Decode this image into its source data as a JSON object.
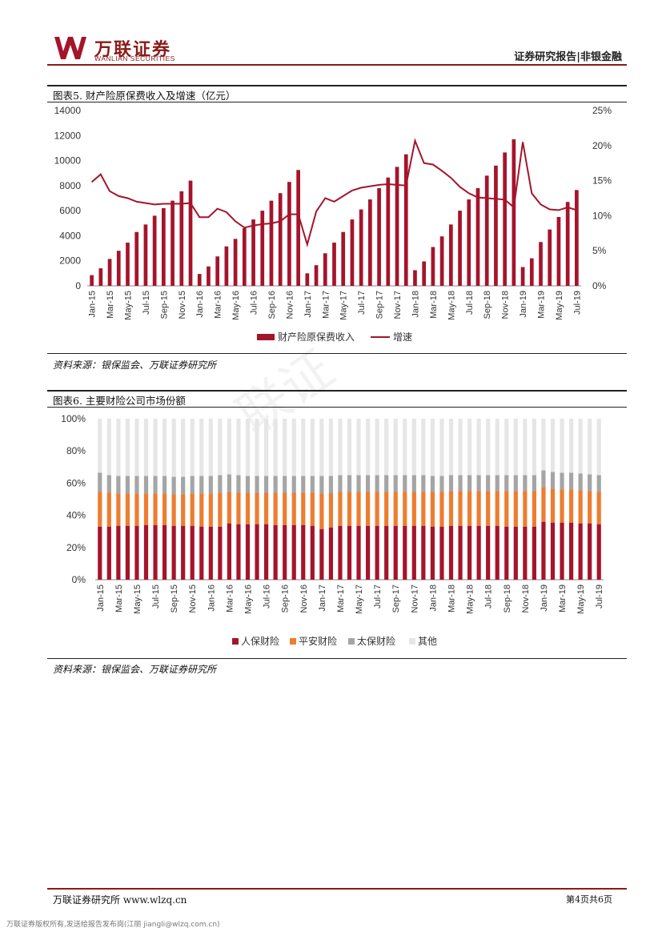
{
  "header": {
    "logo_cn": "万联证券",
    "logo_en": "WANLIAN SECURITIES",
    "report_type": "证券研究报告|非银金融",
    "watermark": "联证"
  },
  "colors": {
    "brand": "#8b1a1a",
    "bar_red": "#a5142b",
    "line": "#a5142b",
    "orange": "#ed7d31",
    "gray": "#a5a5a5",
    "light": "#e6e6e6"
  },
  "fig5": {
    "title": "图表5. 财产险原保费收入及增速（亿元）",
    "source": "资料来源：银保监会、万联证券研究所"
  },
  "fig6": {
    "title": "图表6. 主要财险公司市场份额",
    "source": "资料来源：银保监会、万联证券研究所"
  },
  "footer": {
    "left": "万联证券研究所 www.wlzq.cn",
    "right": "第4页共6页",
    "note": "万联证券版权所有,发送给报告发布岗(江丽 jiangli@wlzq.com.cn)"
  },
  "chart_data": [
    {
      "type": "bar",
      "title": "",
      "categories": [
        "Jan-15",
        "Feb-15",
        "Mar-15",
        "Apr-15",
        "May-15",
        "Jun-15",
        "Jul-15",
        "Aug-15",
        "Sep-15",
        "Oct-15",
        "Nov-15",
        "Dec-15",
        "Jan-16",
        "Feb-16",
        "Mar-16",
        "Apr-16",
        "May-16",
        "Jun-16",
        "Jul-16",
        "Aug-16",
        "Sep-16",
        "Oct-16",
        "Nov-16",
        "Dec-16",
        "Jan-17",
        "Feb-17",
        "Mar-17",
        "Apr-17",
        "May-17",
        "Jun-17",
        "Jul-17",
        "Aug-17",
        "Sep-17",
        "Oct-17",
        "Nov-17",
        "Dec-17",
        "Jan-18",
        "Feb-18",
        "Mar-18",
        "Apr-18",
        "May-18",
        "Jun-18",
        "Jul-18",
        "Aug-18",
        "Sep-18",
        "Oct-18",
        "Nov-18",
        "Dec-18",
        "Jan-19",
        "Feb-19",
        "Mar-19",
        "Apr-19",
        "May-19",
        "Jun-19",
        "Jul-19"
      ],
      "x_tick_labels": [
        "Jan-15",
        "Mar-15",
        "May-15",
        "Jul-15",
        "Sep-15",
        "Nov-15",
        "Jan-16",
        "Mar-16",
        "May-16",
        "Jul-16",
        "Sep-16",
        "Nov-16",
        "Jan-17",
        "Mar-17",
        "May-17",
        "Jul-17",
        "Sep-17",
        "Nov-17",
        "Jan-18",
        "Mar-18",
        "May-18",
        "Jul-18",
        "Sep-18",
        "Nov-18",
        "Jan-19",
        "Mar-19",
        "May-19",
        "Jul-19"
      ],
      "series": [
        {
          "name": "财产险原保费收入",
          "axis": "left",
          "type": "bar",
          "values": [
            850,
            1400,
            2150,
            2800,
            3450,
            4300,
            4900,
            5600,
            6200,
            6800,
            7550,
            8400,
            950,
            1550,
            2350,
            3150,
            3750,
            4600,
            5300,
            6000,
            6800,
            7400,
            8300,
            9250,
            1000,
            1650,
            2600,
            3450,
            4300,
            5300,
            6100,
            6900,
            7800,
            8650,
            9500,
            10500,
            1250,
            1950,
            3100,
            3950,
            4900,
            6000,
            6900,
            7800,
            8800,
            9600,
            10650,
            11700,
            1500,
            2200,
            3500,
            4500,
            5500,
            6700,
            7650
          ]
        },
        {
          "name": "增速",
          "axis": "right",
          "type": "line",
          "values": [
            14.8,
            15.9,
            13.5,
            12.8,
            12.5,
            12.0,
            11.8,
            11.6,
            11.7,
            11.7,
            11.7,
            11.8,
            9.8,
            9.8,
            11.0,
            10.5,
            9.2,
            8.3,
            8.6,
            8.8,
            8.9,
            9.2,
            10.2,
            10.2,
            5.9,
            10.6,
            12.5,
            12.0,
            12.8,
            13.6,
            14.0,
            14.2,
            14.4,
            14.5,
            14.4,
            14.3,
            20.7,
            17.5,
            17.3,
            16.4,
            15.4,
            14.1,
            13.2,
            12.6,
            12.5,
            12.4,
            12.3,
            11.2,
            20.5,
            13.2,
            11.6,
            10.9,
            10.8,
            11.2,
            10.8
          ]
        }
      ],
      "ylim": [
        0,
        14000
      ],
      "yticks": [
        0,
        2000,
        4000,
        6000,
        8000,
        10000,
        12000,
        14000
      ],
      "y2lim": [
        0,
        25
      ],
      "y2ticks": [
        "0%",
        "5%",
        "10%",
        "15%",
        "20%",
        "25%"
      ],
      "legend": [
        "财产险原保费收入",
        "增速"
      ],
      "legend_position": "bottom",
      "grid": false
    },
    {
      "type": "bar",
      "stacked": true,
      "title": "",
      "categories": [
        "Jan-15",
        "Feb-15",
        "Mar-15",
        "Apr-15",
        "May-15",
        "Jun-15",
        "Jul-15",
        "Aug-15",
        "Sep-15",
        "Oct-15",
        "Nov-15",
        "Dec-15",
        "Jan-16",
        "Feb-16",
        "Mar-16",
        "Apr-16",
        "May-16",
        "Jun-16",
        "Jul-16",
        "Aug-16",
        "Sep-16",
        "Oct-16",
        "Nov-16",
        "Dec-16",
        "Jan-17",
        "Feb-17",
        "Mar-17",
        "Apr-17",
        "May-17",
        "Jun-17",
        "Jul-17",
        "Aug-17",
        "Sep-17",
        "Oct-17",
        "Nov-17",
        "Dec-17",
        "Jan-18",
        "Feb-18",
        "Mar-18",
        "Apr-18",
        "May-18",
        "Jun-18",
        "Jul-18",
        "Aug-18",
        "Sep-18",
        "Oct-18",
        "Nov-18",
        "Dec-18",
        "Jan-19",
        "Feb-19",
        "Mar-19",
        "Apr-19",
        "May-19",
        "Jun-19",
        "Jul-19"
      ],
      "x_tick_labels": [
        "Jan-15",
        "Mar-15",
        "May-15",
        "Jul-15",
        "Sep-15",
        "Nov-15",
        "Jan-16",
        "Mar-16",
        "May-16",
        "Jul-16",
        "Sep-16",
        "Nov-16",
        "Jan-17",
        "Mar-17",
        "May-17",
        "Jul-17",
        "Sep-17",
        "Nov-17",
        "Jan-18",
        "Mar-18",
        "May-18",
        "Jul-18",
        "Sep-18",
        "Nov-18",
        "Jan-19",
        "Mar-19",
        "May-19",
        "Jul-19"
      ],
      "series": [
        {
          "name": "人保财险",
          "values": [
            33,
            33,
            33.5,
            33.5,
            33.5,
            34,
            34,
            34,
            33.5,
            33.5,
            33.5,
            33,
            33,
            33,
            35,
            34.5,
            34.5,
            34.5,
            34.5,
            34,
            34,
            34,
            34,
            33.5,
            31.5,
            32.5,
            33.5,
            33.5,
            33.5,
            33.5,
            33.5,
            33.5,
            33.5,
            33.5,
            33.5,
            33.5,
            33,
            33,
            33.5,
            33.5,
            33.5,
            33.5,
            33.5,
            33.5,
            33,
            33,
            33,
            33,
            36,
            35.5,
            35.5,
            35.5,
            35,
            35,
            34.5
          ]
        },
        {
          "name": "平安财险",
          "values": [
            21.5,
            21,
            20,
            20,
            20,
            19.5,
            19.5,
            19.5,
            19.5,
            19.5,
            20,
            20.5,
            20.5,
            21,
            19.5,
            19.5,
            19.5,
            19.5,
            19.5,
            20,
            20,
            20,
            20,
            20.5,
            22,
            21.5,
            21,
            21,
            21,
            21,
            21,
            21,
            21,
            21,
            21,
            21,
            21.5,
            21.5,
            21.5,
            21.5,
            21.5,
            21.5,
            21.5,
            21.5,
            22,
            22,
            22,
            22,
            21.5,
            21,
            20.5,
            20.5,
            20.5,
            20,
            20
          ]
        },
        {
          "name": "太保财险",
          "values": [
            12,
            11,
            11,
            11,
            11,
            11,
            11,
            11,
            11,
            11,
            11,
            11,
            11,
            11,
            11,
            11,
            10.5,
            10.5,
            10.5,
            10.5,
            10.5,
            10.5,
            10.5,
            10.5,
            11,
            10.5,
            10.5,
            10.5,
            10.5,
            10.5,
            10.5,
            10.5,
            10.5,
            10.5,
            10.5,
            10.5,
            10,
            10,
            10,
            10,
            10,
            10,
            10,
            10,
            10,
            10,
            10,
            10,
            10.5,
            10.5,
            10.5,
            10.5,
            10.5,
            10.5,
            10.5
          ]
        },
        {
          "name": "其他",
          "values": [
            33.5,
            35,
            35.5,
            35.5,
            35.5,
            35.5,
            35.5,
            35.5,
            36,
            36,
            35.5,
            35.5,
            35.5,
            35,
            34.5,
            35,
            35.5,
            35.5,
            35.5,
            35.5,
            35.5,
            35.5,
            35.5,
            35.5,
            35.5,
            35.5,
            35,
            35,
            35,
            35,
            35,
            35,
            35,
            35,
            35,
            35,
            35.5,
            35.5,
            35,
            35,
            35,
            35,
            35,
            35,
            35,
            35,
            35,
            35,
            32,
            33,
            33.5,
            33.5,
            34,
            34.5,
            35
          ]
        }
      ],
      "ylim": [
        0,
        100
      ],
      "yticks": [
        "0%",
        "20%",
        "40%",
        "60%",
        "80%",
        "100%"
      ],
      "legend": [
        "人保财险",
        "平安财险",
        "太保财险",
        "其他"
      ],
      "legend_position": "bottom",
      "grid": false
    }
  ]
}
